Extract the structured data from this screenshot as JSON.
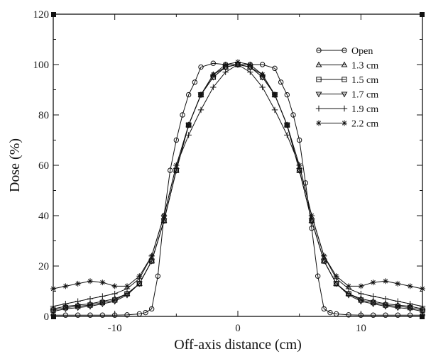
{
  "chart_data": {
    "type": "line",
    "xlabel": "Off-axis distance (cm)",
    "ylabel": "Dose (%)",
    "xlim": [
      -15,
      15
    ],
    "ylim": [
      0,
      120
    ],
    "x_ticks": [
      -10,
      0,
      10
    ],
    "y_ticks": [
      0,
      20,
      40,
      60,
      80,
      100,
      120
    ],
    "grid": false,
    "legend_position": "top-right",
    "colors": {
      "line": "#111111",
      "axis": "#111111",
      "background": "#ffffff"
    },
    "series": [
      {
        "name": "Open",
        "marker": "circle",
        "x": [
          -15,
          -14,
          -13,
          -12,
          -11,
          -10,
          -9,
          -8,
          -7.5,
          -7,
          -6.5,
          -6,
          -5.5,
          -5,
          -4.5,
          -4,
          -3.5,
          -3,
          -2,
          -1,
          0,
          1,
          2,
          3,
          3.5,
          4,
          4.5,
          5,
          5.5,
          6,
          6.5,
          7,
          7.5,
          8,
          9,
          10,
          11,
          12,
          13,
          14,
          15
        ],
        "y": [
          0.5,
          0.5,
          0.5,
          0.5,
          0.5,
          0.5,
          0.6,
          1,
          1.5,
          3,
          16,
          40,
          58,
          70,
          80,
          88,
          93,
          99,
          100.5,
          100,
          100,
          100,
          100,
          98.5,
          93,
          88,
          80,
          70,
          53,
          35,
          16,
          3,
          1.5,
          1,
          0.6,
          0.5,
          0.5,
          0.5,
          0.5,
          0.5,
          0.5
        ]
      },
      {
        "name": "1.3 cm",
        "marker": "triangle-up",
        "x": [
          -15,
          -14,
          -13,
          -12,
          -11,
          -10,
          -9,
          -8,
          -7,
          -6,
          -5,
          -4,
          -3,
          -2,
          -1,
          0,
          1,
          2,
          3,
          4,
          5,
          6,
          7,
          8,
          9,
          10,
          11,
          12,
          13,
          14,
          15
        ],
        "y": [
          3,
          4,
          4.5,
          5,
          6,
          7,
          9,
          13,
          22,
          38,
          58,
          76,
          88,
          96,
          99,
          100,
          99,
          96,
          88,
          76,
          58,
          38,
          22,
          13,
          9,
          7,
          6,
          5,
          4.5,
          4,
          3
        ]
      },
      {
        "name": "1.5 cm",
        "marker": "square",
        "x": [
          -15,
          -14,
          -13,
          -12,
          -11,
          -10,
          -9,
          -8,
          -7,
          -6,
          -5,
          -4,
          -3,
          -2,
          -1,
          0,
          1,
          2,
          3,
          4,
          5,
          6,
          7,
          8,
          9,
          10,
          11,
          12,
          13,
          14,
          15
        ],
        "y": [
          2.5,
          3.5,
          4,
          4.5,
          5.5,
          6.5,
          9,
          13,
          22,
          38,
          58,
          76,
          88,
          95,
          99,
          100,
          99,
          95,
          88,
          76,
          58,
          38,
          22,
          13,
          9,
          6.5,
          5.5,
          4.5,
          4,
          3.5,
          2.5
        ]
      },
      {
        "name": "1.7 cm",
        "marker": "triangle-down",
        "x": [
          -15,
          -14,
          -13,
          -12,
          -11,
          -10,
          -9,
          -8,
          -7,
          -6,
          -5,
          -4,
          -3,
          -2,
          -1,
          0,
          1,
          2,
          3,
          4,
          5,
          6,
          7,
          8,
          9,
          10,
          11,
          12,
          13,
          14,
          15
        ],
        "y": [
          2,
          3,
          3.5,
          4,
          5,
          6,
          8.5,
          13,
          22,
          38,
          58,
          76,
          88,
          95,
          99,
          100,
          99,
          95,
          88,
          76,
          58,
          38,
          22,
          13,
          8.5,
          6,
          5,
          4,
          3.5,
          3,
          2
        ]
      },
      {
        "name": "1.9 cm",
        "marker": "plus",
        "x": [
          -15,
          -14,
          -13,
          -12,
          -11,
          -10,
          -9,
          -8,
          -7,
          -6,
          -5,
          -4,
          -3,
          -2,
          -1,
          0,
          1,
          2,
          3,
          4,
          5,
          6,
          7,
          8,
          9,
          10,
          11,
          12,
          13,
          14,
          15
        ],
        "y": [
          4,
          5,
          6,
          7,
          8,
          9,
          11,
          15,
          24,
          40,
          60,
          72,
          82,
          91,
          97,
          100,
          97,
          91,
          82,
          72,
          60,
          40,
          24,
          15,
          11,
          9,
          8,
          7,
          6,
          5,
          4
        ]
      },
      {
        "name": "2.2 cm",
        "marker": "asterisk",
        "x": [
          -15,
          -14,
          -13,
          -12,
          -11,
          -10,
          -9,
          -8,
          -7,
          -6,
          -5,
          -4,
          -3,
          -2,
          -1,
          0,
          1,
          2,
          3,
          4,
          5,
          6,
          7,
          8,
          9,
          10,
          11,
          12,
          13,
          14,
          15
        ],
        "y": [
          11,
          12,
          13,
          14,
          13.5,
          12,
          12,
          16,
          24,
          40,
          60,
          76,
          88,
          96,
          100,
          101,
          100,
          96,
          88,
          76,
          60,
          40,
          24,
          16,
          12,
          12,
          13.5,
          14,
          13,
          12,
          11
        ]
      }
    ]
  }
}
